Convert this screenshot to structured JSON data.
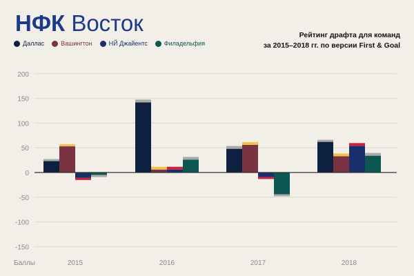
{
  "brand": {
    "part1": "НФК",
    "part2": "Восток"
  },
  "title": {
    "line1": "Рейтинг драфта для команд",
    "line2": "за 2015–2018 гг. по версии First & Goal"
  },
  "colors": {
    "brand": "#1d3a8a",
    "accent_yellow": "#f2c14e",
    "accent_gray": "#a8aca9",
    "zero_line": "#333333"
  },
  "chart_data": {
    "type": "bar",
    "stacked_caps": true,
    "ylabel": "Баллы",
    "ylim": [
      -160,
      210
    ],
    "yticks": [
      200,
      150,
      100,
      50,
      0,
      -50,
      -100,
      -150
    ],
    "categories": [
      "2015",
      "2016",
      "2017",
      "2018"
    ],
    "grid": true,
    "legend_position": "top-left",
    "series": [
      {
        "name": "Даллас",
        "color": "#0e2040",
        "values": [
          23,
          142,
          48,
          62
        ],
        "caps": [
          {
            "color": "#a8aca9",
            "size": 3
          },
          {
            "color": "#a8aca9",
            "size": 4
          },
          {
            "color": "#a8aca9",
            "size": 4
          },
          {
            "color": "#a8aca9",
            "size": 3
          }
        ]
      },
      {
        "name": "Вашингтон",
        "color": "#7a3441",
        "values": [
          53,
          6,
          56,
          33
        ],
        "caps": [
          {
            "color": "#f2c14e",
            "size": 3
          },
          {
            "color": "#f2c14e",
            "size": 4
          },
          {
            "color": "#f2c14e",
            "size": 4
          },
          {
            "color": "#f2c14e",
            "size": 4
          }
        ]
      },
      {
        "name": "НЙ Джайентс",
        "color": "#192f6b",
        "values": [
          -11,
          6,
          -9,
          54
        ],
        "caps": [
          {
            "color": "#c8243d",
            "size": 3
          },
          {
            "color": "#c8243d",
            "size": 4
          },
          {
            "color": "#c8243d",
            "size": 3
          },
          {
            "color": "#c8243d",
            "size": 4
          }
        ]
      },
      {
        "name": "Филадельфия",
        "color": "#0d5752",
        "values": [
          -5,
          26,
          -44,
          34
        ],
        "caps": [
          {
            "color": "#a8aca9",
            "size": 3
          },
          {
            "color": "#a8aca9",
            "size": 4
          },
          {
            "color": "#a8aca9",
            "size": 3
          },
          {
            "color": "#a8aca9",
            "size": 4
          }
        ]
      }
    ]
  }
}
